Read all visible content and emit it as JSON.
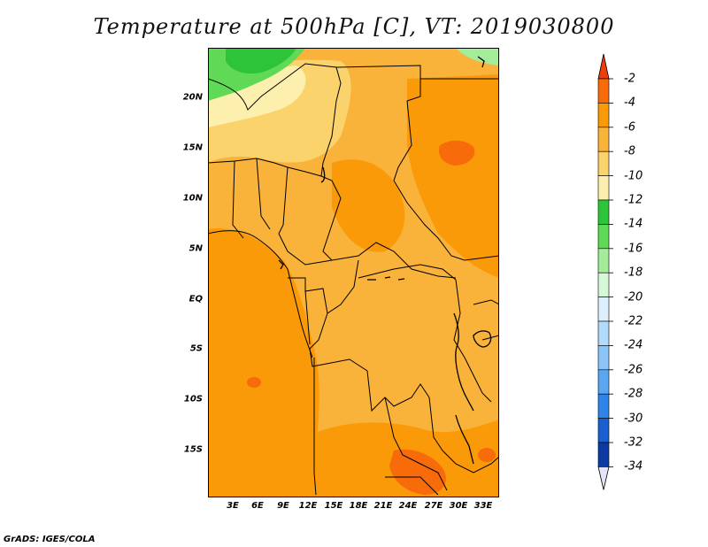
{
  "title": "Temperature at 500hPa [C], VT: 2019030800",
  "credit": "GrADS: IGES/COLA",
  "map": {
    "lat_labels": [
      "20N",
      "15N",
      "10N",
      "5N",
      "EQ",
      "5S",
      "10S",
      "15S"
    ],
    "lon_labels": [
      "3E",
      "6E",
      "9E",
      "12E",
      "15E",
      "18E",
      "21E",
      "24E",
      "27E",
      "30E",
      "33E"
    ]
  },
  "colorbar": {
    "labels": [
      "-2",
      "-4",
      "-6",
      "-8",
      "-10",
      "-12",
      "-14",
      "-16",
      "-18",
      "-20",
      "-22",
      "-24",
      "-26",
      "-28",
      "-30",
      "-32",
      "-34"
    ],
    "colors": [
      "#f03c0a",
      "#f76b0a",
      "#fb9a08",
      "#f9b23a",
      "#fbd36d",
      "#fdf0ae",
      "#2ec43a",
      "#60da56",
      "#a4ec9a",
      "#d6f8d6",
      "#dcf0fe",
      "#b3d9fb",
      "#8dc4f7",
      "#5aa6f0",
      "#2f84e8",
      "#1a5fcf",
      "#0d3aa2",
      "#081a70"
    ]
  }
}
